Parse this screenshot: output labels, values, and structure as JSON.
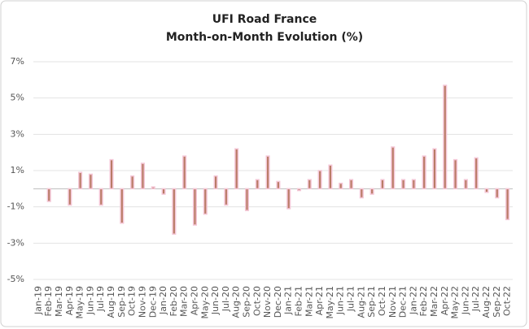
{
  "chart_data": {
    "type": "bar",
    "title": [
      "UFI Road France",
      "Month-on-Month Evolution (%)"
    ],
    "categories": [
      "Jan-19",
      "Feb-19",
      "Mar-19",
      "Apr-19",
      "May-19",
      "Jun-19",
      "Jul-19",
      "Aug-19",
      "Sep-19",
      "Oct-19",
      "Nov-19",
      "Dec-19",
      "Jan-20",
      "Feb-20",
      "Mar-20",
      "Apr-20",
      "May-20",
      "Jun-20",
      "Jul-20",
      "Aug-20",
      "Sep-20",
      "Oct-20",
      "Nov-20",
      "Dec-20",
      "Jan-21",
      "Feb-21",
      "Mar-21",
      "Apr-21",
      "May-21",
      "Jun-21",
      "Jul-21",
      "Aug-21",
      "Sep-21",
      "Oct-21",
      "Nov-21",
      "Dec-21",
      "Jan-22",
      "Feb-22",
      "Mar-22",
      "Apr-22",
      "May-22",
      "Jun-22",
      "Jul-22",
      "Aug-22",
      "Sep-22",
      "Oct-22"
    ],
    "values": [
      0,
      -0.7,
      0,
      -0.9,
      0.9,
      0.8,
      -0.9,
      1.6,
      -1.9,
      0.7,
      1.4,
      0.1,
      -0.3,
      -2.5,
      1.8,
      -2.0,
      -1.4,
      0.7,
      -0.9,
      2.2,
      -1.2,
      0.5,
      1.8,
      0.4,
      -1.1,
      -0.1,
      0.5,
      1.0,
      1.3,
      0.3,
      0.5,
      -0.5,
      -0.3,
      0.5,
      2.3,
      0.5,
      0.5,
      1.8,
      2.2,
      5.7,
      1.6,
      0.5,
      1.7,
      -0.2,
      -0.5,
      -1.7
    ],
    "color": "#b97b66",
    "ylim": [
      -5,
      7
    ],
    "yticks": [
      {
        "value": -5,
        "label": "-5%"
      },
      {
        "value": -3,
        "label": "-3%"
      },
      {
        "value": -1,
        "label": "-1%"
      },
      {
        "value": 1,
        "label": "1%"
      },
      {
        "value": 3,
        "label": "3%"
      },
      {
        "value": 5,
        "label": "5%"
      },
      {
        "value": 7,
        "label": "7%"
      }
    ],
    "grid": true
  }
}
